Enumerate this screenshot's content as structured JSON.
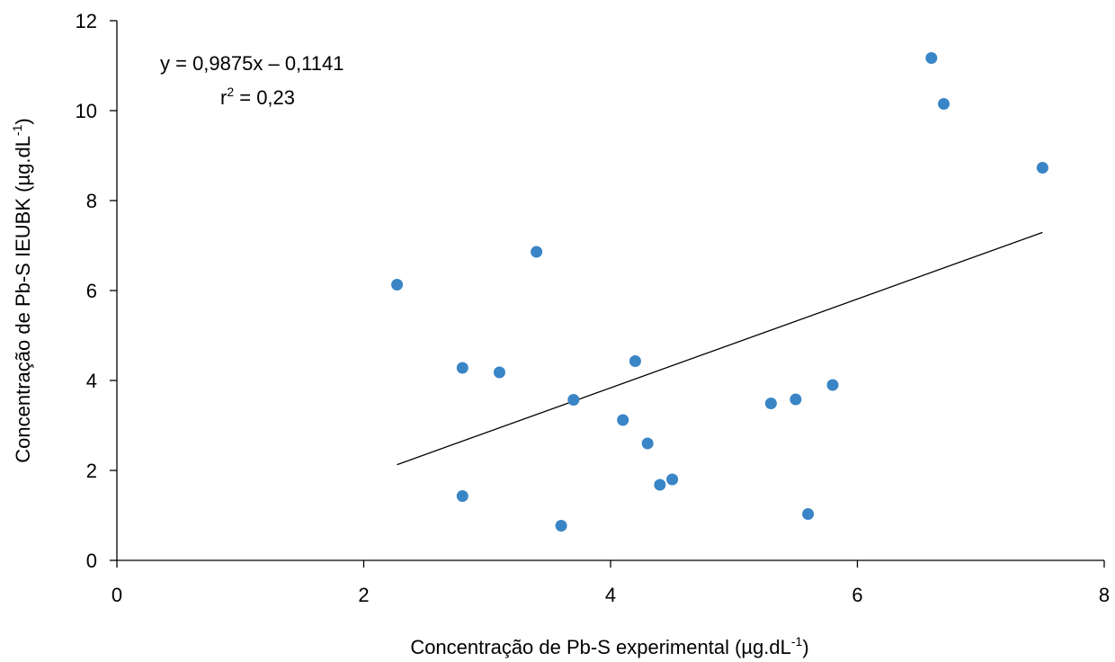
{
  "chart_data": {
    "type": "scatter",
    "title": "",
    "xlabel": {
      "base": "Concentração de Pb-S experimental (µg.dL",
      "sup": "-1",
      "tail": ")"
    },
    "ylabel": {
      "base": "Concentração de Pb-S IEUBK (µg.dL",
      "sup": "-1",
      "tail": ")"
    },
    "xlim": [
      0,
      8
    ],
    "ylim": [
      0,
      12
    ],
    "xticks": [
      0,
      2,
      4,
      6,
      8
    ],
    "yticks": [
      0,
      2,
      4,
      6,
      8,
      10,
      12
    ],
    "grid": false,
    "legend": "none",
    "point_color": "#3a85c6",
    "line_color": "#000000",
    "points": [
      {
        "x": 2.27,
        "y": 6.13
      },
      {
        "x": 2.8,
        "y": 4.28
      },
      {
        "x": 2.8,
        "y": 1.43
      },
      {
        "x": 3.1,
        "y": 4.18
      },
      {
        "x": 3.4,
        "y": 6.86
      },
      {
        "x": 3.6,
        "y": 0.77
      },
      {
        "x": 3.7,
        "y": 3.57
      },
      {
        "x": 4.1,
        "y": 3.12
      },
      {
        "x": 4.2,
        "y": 4.43
      },
      {
        "x": 4.3,
        "y": 2.6
      },
      {
        "x": 4.4,
        "y": 1.68
      },
      {
        "x": 4.5,
        "y": 1.8
      },
      {
        "x": 5.3,
        "y": 3.49
      },
      {
        "x": 5.5,
        "y": 3.58
      },
      {
        "x": 5.6,
        "y": 1.03
      },
      {
        "x": 5.8,
        "y": 3.9
      },
      {
        "x": 6.6,
        "y": 11.17
      },
      {
        "x": 6.7,
        "y": 10.15
      },
      {
        "x": 7.5,
        "y": 8.73
      }
    ],
    "trendline": {
      "slope": 0.9875,
      "intercept": -0.1141,
      "x_range": [
        2.27,
        7.5
      ]
    },
    "annotations": {
      "equation": "y = 0,9875x – 0,1141",
      "r2_prefix": "r",
      "r2_sup": "2",
      "r2_value": " = 0,23"
    }
  }
}
